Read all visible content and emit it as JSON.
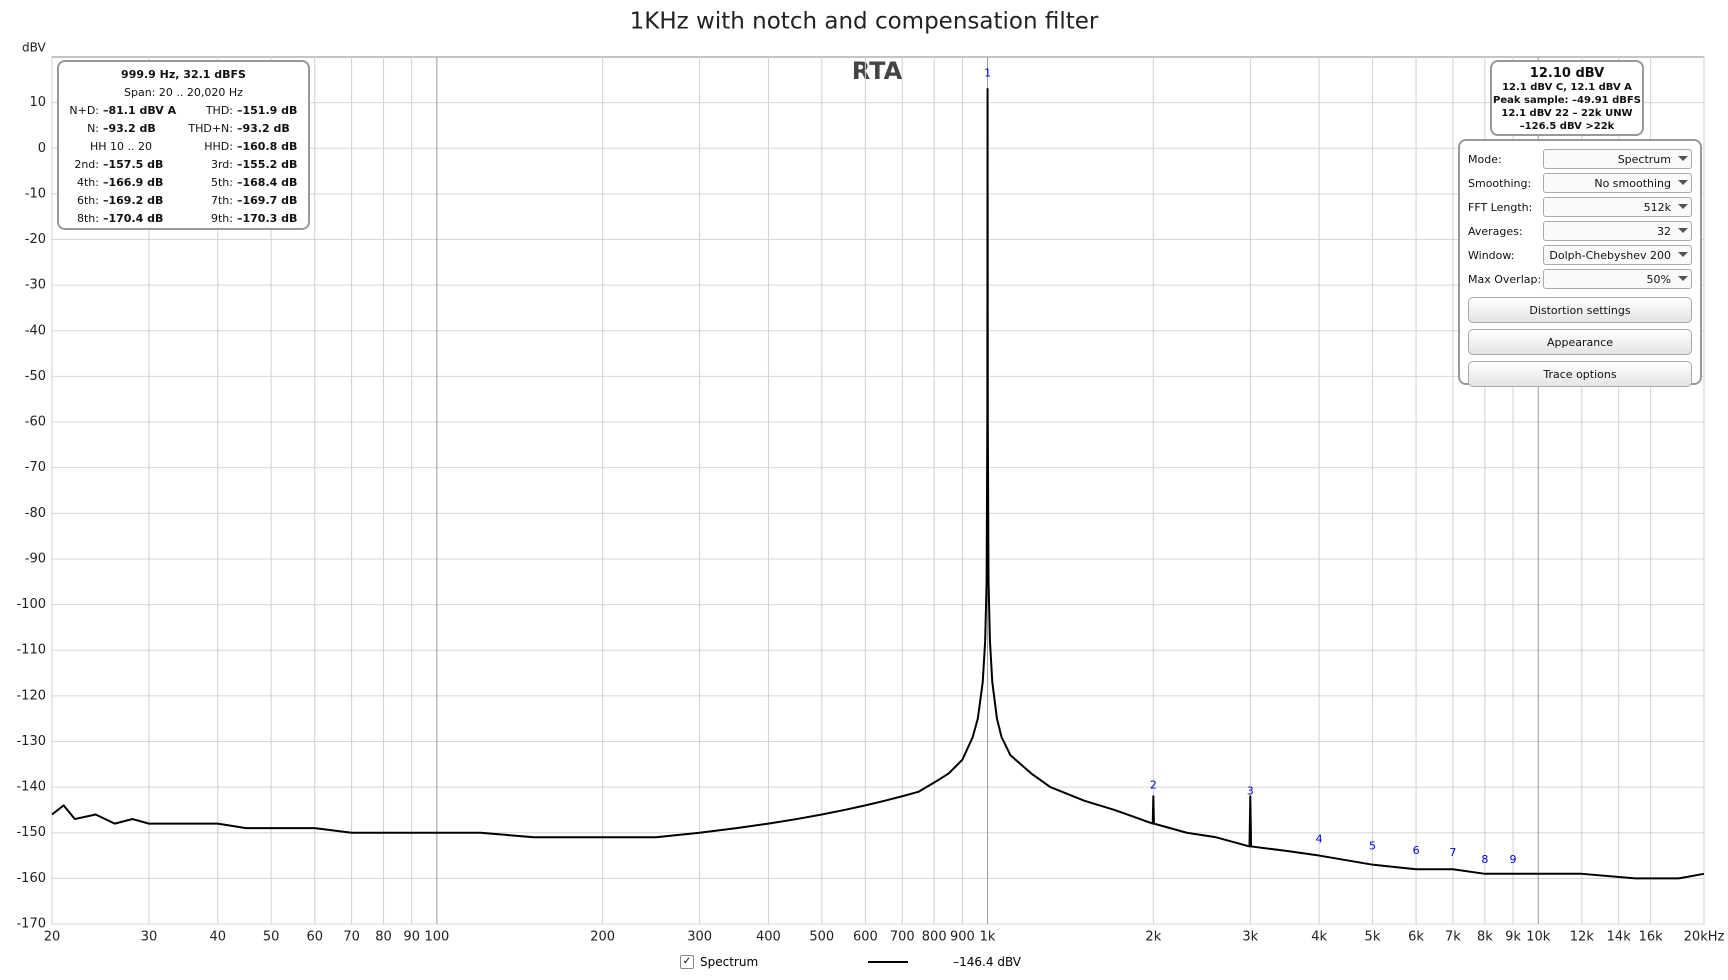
{
  "chart_data": {
    "type": "line",
    "title": "1KHz with notch and compensation filter",
    "y_label": "dBV",
    "overlay_label": "RTA",
    "xscale": "log",
    "grid": true,
    "xlim": [
      20,
      20000
    ],
    "ylim": [
      -170,
      20
    ],
    "yticks": [
      -170,
      -160,
      -150,
      -140,
      -130,
      -120,
      -110,
      -100,
      -90,
      -80,
      -70,
      -60,
      -50,
      -40,
      -30,
      -20,
      -10,
      0,
      10
    ],
    "xticks": [
      20,
      30,
      40,
      50,
      60,
      70,
      80,
      90,
      100,
      200,
      300,
      400,
      500,
      600,
      700,
      800,
      900,
      {
        "value": 1000,
        "label": "1k"
      },
      {
        "value": 2000,
        "label": "2k"
      },
      {
        "value": 3000,
        "label": "3k"
      },
      {
        "value": 4000,
        "label": "4k"
      },
      {
        "value": 5000,
        "label": "5k"
      },
      {
        "value": 6000,
        "label": "6k"
      },
      {
        "value": 7000,
        "label": "7k"
      },
      {
        "value": 8000,
        "label": "8k"
      },
      {
        "value": 9000,
        "label": "9k"
      },
      {
        "value": 10000,
        "label": "10k"
      },
      {
        "value": 12000,
        "label": "12k"
      },
      {
        "value": 14000,
        "label": "14k"
      },
      {
        "value": 16000,
        "label": "16k"
      },
      {
        "value": 20000,
        "label": "20kHz"
      }
    ],
    "x": [
      20,
      21,
      22,
      24,
      26,
      28,
      30,
      35,
      40,
      45,
      50,
      60,
      70,
      80,
      90,
      100,
      120,
      150,
      200,
      250,
      300,
      350,
      400,
      450,
      500,
      550,
      600,
      650,
      700,
      750,
      800,
      850,
      900,
      940,
      960,
      980,
      990,
      996,
      999,
      1000,
      1001,
      1004,
      1010,
      1020,
      1040,
      1060,
      1100,
      1200,
      1300,
      1500,
      1700,
      1995,
      2000,
      2005,
      2300,
      2600,
      2990,
      3000,
      3010,
      3500,
      4000,
      5000,
      6000,
      7000,
      8000,
      10000,
      12000,
      15000,
      18000,
      20000
    ],
    "series": [
      {
        "name": "Spectrum",
        "color": "#000000",
        "values": [
          -146,
          -144,
          -147,
          -146,
          -148,
          -147,
          -148,
          -148,
          -148,
          -149,
          -149,
          -149,
          -150,
          -150,
          -150,
          -150,
          -150,
          -151,
          -151,
          -151,
          -150,
          -149,
          -148,
          -147,
          -146,
          -145,
          -144,
          -143,
          -142,
          -141,
          -139,
          -137,
          -134,
          -129,
          -125,
          -117,
          -108,
          -95,
          -60,
          13,
          -60,
          -95,
          -108,
          -117,
          -125,
          -129,
          -133,
          -137,
          -140,
          -143,
          -145,
          -148,
          -142,
          -148,
          -150,
          -151,
          -153,
          -142,
          -153,
          -154,
          -155,
          -157,
          -158,
          -158,
          -159,
          -159,
          -159,
          -160,
          -160,
          -159
        ]
      }
    ],
    "harmonic_markers": {
      "color": "#0000dd",
      "labels": [
        "1",
        "2",
        "3",
        "4",
        "5",
        "6",
        "7",
        "8",
        "9"
      ],
      "x": [
        1000,
        2000,
        3000,
        4000,
        5000,
        6000,
        7000,
        8000,
        9000
      ],
      "y": [
        16.4,
        -139.7,
        -141,
        -151.5,
        -153,
        -154,
        -154.4,
        -156,
        -156
      ]
    }
  },
  "info_panel": {
    "header": "999.9 Hz, 32.1 dBFS",
    "span": "Span: 20 .. 20,020 Hz",
    "items": [
      {
        "label": "N+D:",
        "value": "–81.1 dBV A"
      },
      {
        "label": "THD:",
        "value": "–151.9 dB"
      },
      {
        "label": "N:",
        "value": "–93.2 dB"
      },
      {
        "label": "THD+N:",
        "value": "–93.2 dB"
      },
      {
        "label": "HH 10 .. 20"
      },
      {
        "label": "HHD:",
        "value": "–160.8 dB"
      },
      {
        "label": "2nd:",
        "value": "–157.5 dB"
      },
      {
        "label": "3rd:",
        "value": "–155.2 dB"
      },
      {
        "label": "4th:",
        "value": "–166.9 dB"
      },
      {
        "label": "5th:",
        "value": "–168.4 dB"
      },
      {
        "label": "6th:",
        "value": "–169.2 dB"
      },
      {
        "label": "7th:",
        "value": "–169.7 dB"
      },
      {
        "label": "8th:",
        "value": "–170.4 dB"
      },
      {
        "label": "9th:",
        "value": "–170.3 dB"
      }
    ]
  },
  "level_panel": {
    "level": "12.10 dBV",
    "lines": [
      "12.1 dBV C, 12.1 dBV A",
      "Peak sample: –49.91 dBFS",
      "12.1 dBV 22 – 22k UNW",
      "–126.5 dBV >22k"
    ]
  },
  "controls": {
    "fields": [
      {
        "label": "Mode:",
        "value": "Spectrum"
      },
      {
        "label": "Smoothing:",
        "value": "No  smoothing"
      },
      {
        "label": "FFT Length:",
        "value": "512k"
      },
      {
        "label": "Averages:",
        "value": "32"
      },
      {
        "label": "Window:",
        "value": "Dolph-Chebyshev 200"
      },
      {
        "label": "Max Overlap:",
        "value": "50%"
      }
    ],
    "buttons": [
      "Distortion settings",
      "Appearance",
      "Trace options"
    ]
  },
  "legend_readout": "–146.4 dBV"
}
